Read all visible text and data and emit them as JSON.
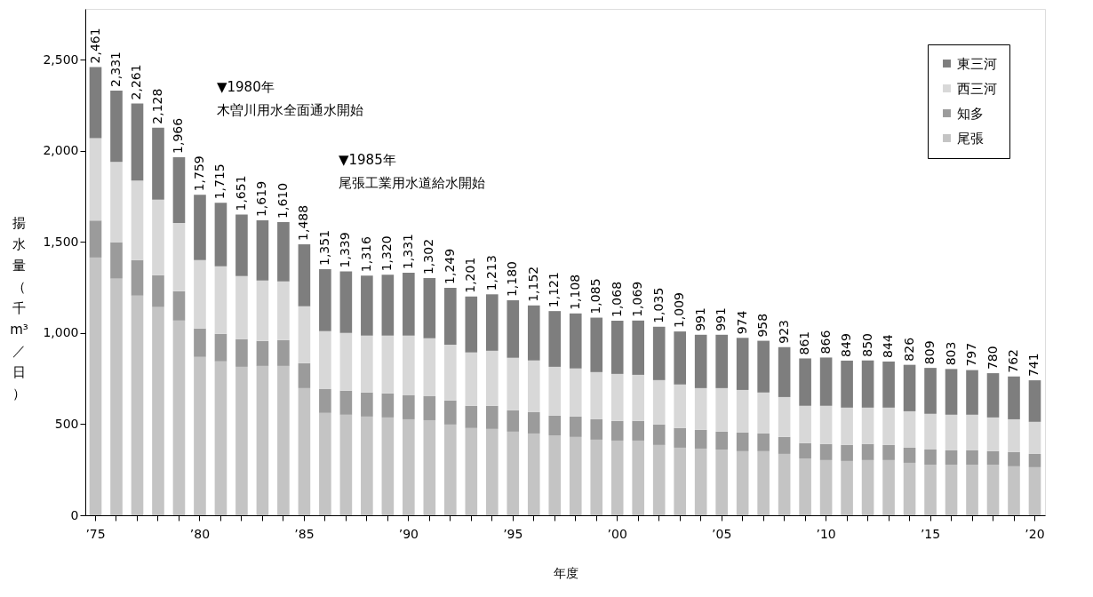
{
  "chart_data": {
    "type": "bar",
    "stacked": true,
    "xlabel": "年度",
    "ylabel": "揚水量（千m³／日）",
    "categories": [
      "’75",
      null,
      null,
      null,
      null,
      "’80",
      null,
      null,
      null,
      null,
      "’85",
      null,
      null,
      null,
      null,
      "’90",
      null,
      null,
      null,
      null,
      "’95",
      null,
      null,
      null,
      null,
      "’00",
      null,
      null,
      null,
      null,
      "’05",
      null,
      null,
      null,
      null,
      "’10",
      null,
      null,
      null,
      null,
      "’15",
      null,
      null,
      null,
      null,
      "’20"
    ],
    "series": [
      {
        "name": "尾張",
        "color": "#c4c4c4",
        "values": [
          1415,
          1299,
          1206,
          1143,
          1069,
          869,
          845,
          815,
          820,
          820,
          698,
          562,
          552,
          542,
          537,
          527,
          522,
          498,
          479,
          474,
          459,
          449,
          439,
          430,
          415,
          410,
          410,
          386,
          371,
          366,
          361,
          352,
          352,
          337,
          312,
          303,
          298,
          303,
          303,
          288,
          278,
          278,
          278,
          278,
          269,
          264
        ]
      },
      {
        "name": "知多",
        "color": "#9b9b9b",
        "values": [
          203,
          200,
          195,
          175,
          161,
          156,
          151,
          152,
          137,
          142,
          137,
          131,
          132,
          132,
          132,
          132,
          132,
          132,
          122,
          127,
          117,
          117,
          108,
          112,
          112,
          108,
          108,
          112,
          108,
          103,
          98,
          102,
          97,
          93,
          84,
          88,
          88,
          88,
          83,
          83,
          83,
          78,
          78,
          74,
          78,
          73
        ]
      },
      {
        "name": "西三河",
        "color": "#d8d8d8",
        "values": [
          452,
          441,
          436,
          415,
          375,
          376,
          371,
          346,
          332,
          322,
          312,
          318,
          317,
          312,
          317,
          327,
          318,
          307,
          293,
          302,
          288,
          284,
          268,
          264,
          259,
          258,
          253,
          244,
          239,
          229,
          239,
          234,
          225,
          219,
          205,
          210,
          205,
          200,
          205,
          200,
          196,
          196,
          196,
          185,
          180,
          176
        ]
      },
      {
        "name": "東三河",
        "color": "#7e7e7e",
        "values": [
          391,
          391,
          424,
          395,
          361,
          358,
          348,
          338,
          330,
          326,
          341,
          340,
          338,
          330,
          334,
          345,
          330,
          312,
          307,
          310,
          316,
          302,
          306,
          302,
          299,
          292,
          298,
          293,
          291,
          293,
          293,
          286,
          284,
          274,
          260,
          265,
          258,
          259,
          253,
          255,
          252,
          251,
          245,
          243,
          235,
          228
        ]
      }
    ],
    "totals": [
      "2,461",
      "2,331",
      "2,261",
      "2,128",
      "1,966",
      "1,759",
      "1,715",
      "1,651",
      "1,619",
      "1,610",
      "1,488",
      "1,351",
      "1,339",
      "1,316",
      "1,320",
      "1,331",
      "1,302",
      "1,249",
      "1,201",
      "1,213",
      "1,180",
      "1,152",
      "1,121",
      "1,108",
      "1,085",
      "1,068",
      "1,069",
      "1,035",
      "1,009",
      "991",
      "991",
      "974",
      "958",
      "923",
      "861",
      "866",
      "849",
      "850",
      "844",
      "826",
      "809",
      "803",
      "797",
      "780",
      "762",
      "741"
    ],
    "ylim": [
      0,
      2780
    ],
    "yticks": [
      0,
      500,
      {
        "value": 1000,
        "label": "1,000"
      },
      {
        "value": 1500,
        "label": "1,500"
      },
      {
        "value": 2000,
        "label": "2,000"
      },
      {
        "value": 2500,
        "label": "2,500"
      }
    ],
    "annotations": [
      "▼1980年",
      "木曽川用水全面通水開始",
      "▼1985年",
      "尾張工業用水道給水開始"
    ],
    "grid": false,
    "legend": "top right"
  }
}
